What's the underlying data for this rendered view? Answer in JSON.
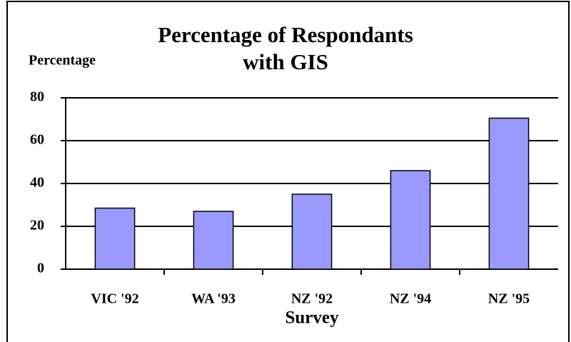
{
  "chart_data": {
    "type": "bar",
    "title": "Percentage of Respondants with GIS",
    "y_label": "Percentage",
    "x_label": "Survey",
    "categories": [
      "VIC '92",
      "WA '93",
      "NZ '92",
      "NZ '94",
      "NZ '95"
    ],
    "values": [
      28.5,
      27,
      35,
      46,
      70.5
    ],
    "color": "#9999ff",
    "ylim": [
      0,
      80
    ],
    "yticks": [
      0,
      20,
      40,
      60,
      80
    ],
    "grid": true
  }
}
